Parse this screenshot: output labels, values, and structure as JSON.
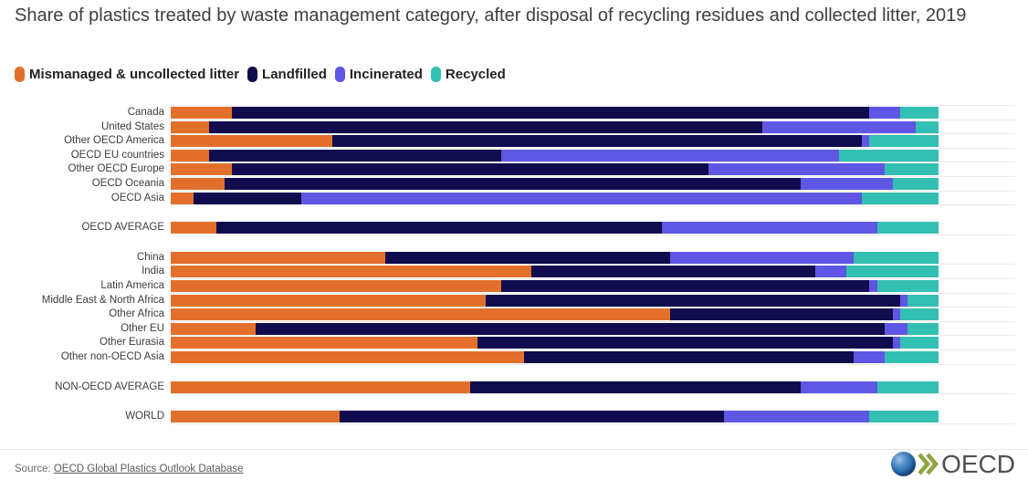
{
  "title": "Share of plastics treated by waste management category, after disposal of recycling residues and collected litter, 2019",
  "colors": {
    "mismanaged": "#E2702C",
    "landfilled": "#100C4E",
    "incinerated": "#5F56E3",
    "recycled": "#34BFB3"
  },
  "legend": [
    {
      "label": "Mismanaged & uncollected litter",
      "color": "#E2702C"
    },
    {
      "label": "Landfilled",
      "color": "#100C4E"
    },
    {
      "label": "Incinerated",
      "color": "#5F56E3"
    },
    {
      "label": "Recycled",
      "color": "#34BFB3"
    }
  ],
  "chart_data": {
    "type": "bar",
    "orientation": "horizontal",
    "stacked": true,
    "unit": "%",
    "xlim": [
      0,
      100
    ],
    "grid": "row-separators",
    "categories": [
      "Canada",
      "United States",
      "Other OECD America",
      "OECD EU countries",
      "Other OECD Europe",
      "OECD Oceania",
      "OECD Asia",
      "OECD AVERAGE",
      "China",
      "India",
      "Latin America",
      "Middle East & North Africa",
      "Other Africa",
      "Other EU",
      "Other Eurasia",
      "Other non-OECD Asia",
      "NON-OECD AVERAGE",
      "WORLD"
    ],
    "group_break_before": [
      "OECD AVERAGE",
      "China",
      "NON-OECD AVERAGE",
      "WORLD"
    ],
    "series": [
      {
        "name": "Mismanaged & uncollected litter",
        "color": "#E2702C",
        "values": [
          8,
          5,
          21,
          5,
          8,
          7,
          3,
          6,
          28,
          47,
          43,
          41,
          65,
          11,
          40,
          46,
          39,
          22
        ]
      },
      {
        "name": "Landfilled",
        "color": "#100C4E",
        "values": [
          83,
          72,
          69,
          38,
          62,
          75,
          14,
          58,
          37,
          37,
          48,
          54,
          29,
          82,
          54,
          43,
          43,
          50
        ]
      },
      {
        "name": "Incinerated",
        "color": "#5F56E3",
        "values": [
          4,
          20,
          1,
          44,
          23,
          12,
          73,
          28,
          24,
          4,
          1,
          1,
          1,
          3,
          1,
          4,
          10,
          19
        ]
      },
      {
        "name": "Recycled",
        "color": "#34BFB3",
        "values": [
          5,
          3,
          9,
          13,
          7,
          6,
          10,
          8,
          11,
          12,
          8,
          4,
          5,
          4,
          5,
          7,
          8,
          9
        ]
      }
    ]
  },
  "footer": {
    "source_prefix": "Source: ",
    "source_link": "OECD Global Plastics Outlook Database",
    "logo_text": "OECD"
  }
}
